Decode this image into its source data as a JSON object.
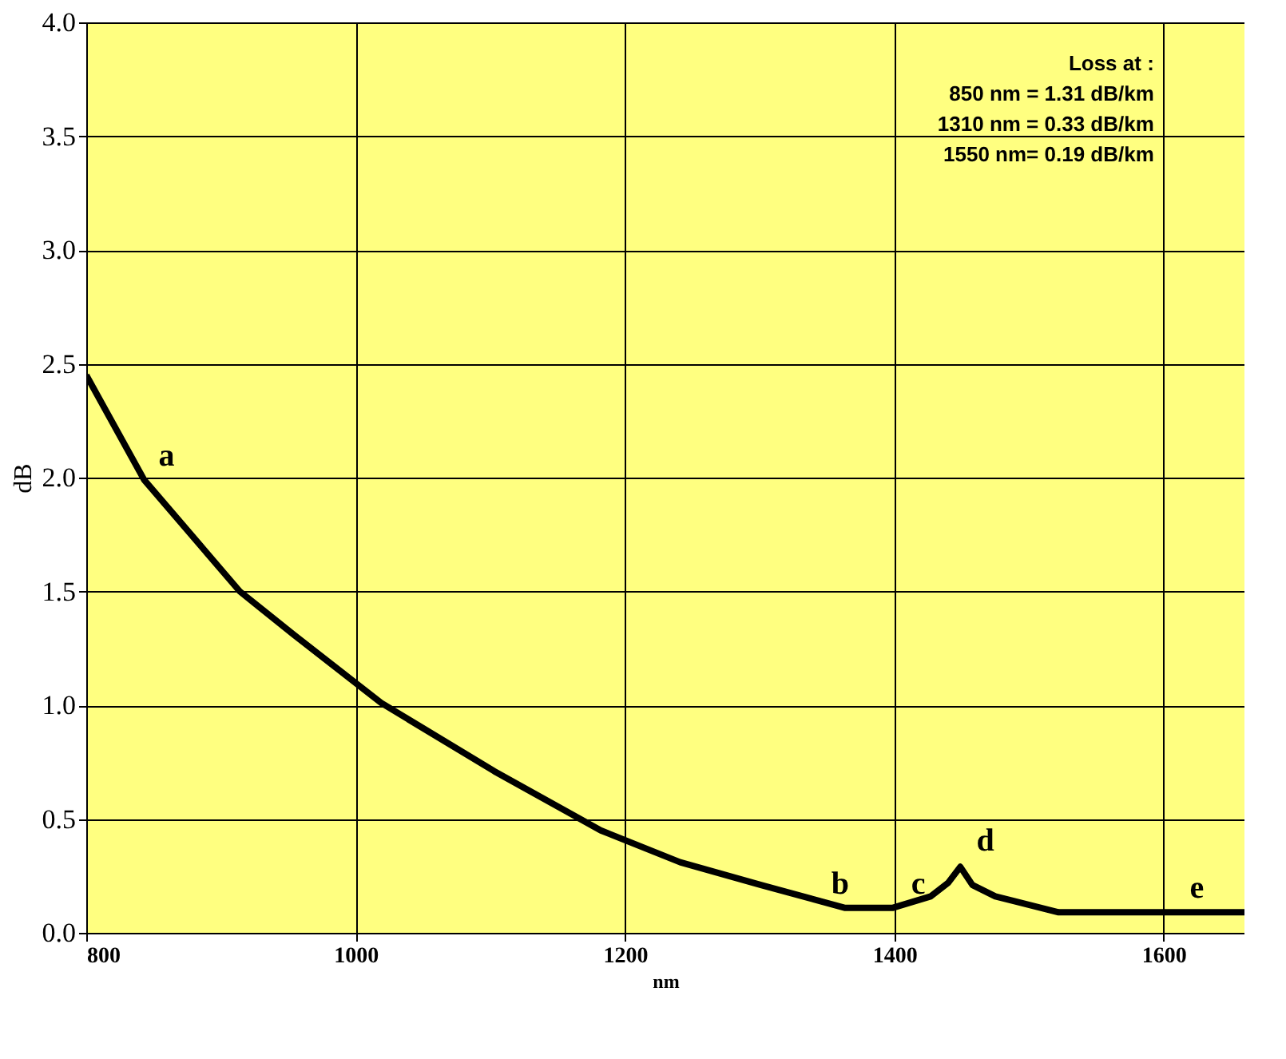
{
  "chart_data": {
    "type": "line",
    "xlabel": "nm",
    "ylabel": "dB",
    "x": [
      800,
      843,
      914,
      954,
      1019,
      1103,
      1182,
      1241,
      1301,
      1363,
      1399,
      1427,
      1440,
      1449,
      1458,
      1475,
      1522,
      1660
    ],
    "series": [
      {
        "color": "#000000",
        "values": [
          2.45,
          1.99,
          1.5,
          1.31,
          1.01,
          0.71,
          0.45,
          0.31,
          0.21,
          0.11,
          0.11,
          0.16,
          0.22,
          0.29,
          0.21,
          0.16,
          0.09,
          0.09
        ]
      }
    ],
    "xlim": [
      800,
      1660
    ],
    "xticks": [
      {
        "value": 800,
        "label": "800"
      },
      {
        "value": 1000,
        "label": "1000"
      },
      {
        "value": 1200,
        "label": "1200"
      },
      {
        "value": 1400,
        "label": "1400"
      },
      {
        "value": 1600,
        "label": "1600"
      }
    ],
    "ylim": [
      0,
      4
    ],
    "yticks": [
      {
        "value": 0,
        "label": "0.0"
      },
      {
        "value": 0.5,
        "label": "0.5"
      },
      {
        "value": 1,
        "label": "1.0"
      },
      {
        "value": 1.5,
        "label": "1.5"
      },
      {
        "value": 2,
        "label": "2.0"
      },
      {
        "value": 2.5,
        "label": "2.5"
      },
      {
        "value": 3,
        "label": "3.0"
      },
      {
        "value": 3.5,
        "label": "3.5"
      },
      {
        "value": 4,
        "label": "4.0"
      }
    ],
    "grid": true,
    "line_style": "solid",
    "marker": "none",
    "annotations": [
      {
        "text": "a",
        "x": 843,
        "y": 1.99
      },
      {
        "text": "b",
        "x": 1374,
        "y": 0.11
      },
      {
        "text": "c",
        "x": 1387,
        "y": 0.11
      },
      {
        "text": "d",
        "x": 1451,
        "y": 0.3
      },
      {
        "text": "e",
        "x": 1608,
        "y": 0.09
      },
      "Loss at :",
      "850 nm = 1.31 dB/km",
      "1310 nm = 0.33 dB/km",
      "1550 nm= 0.19 dB/km"
    ]
  }
}
